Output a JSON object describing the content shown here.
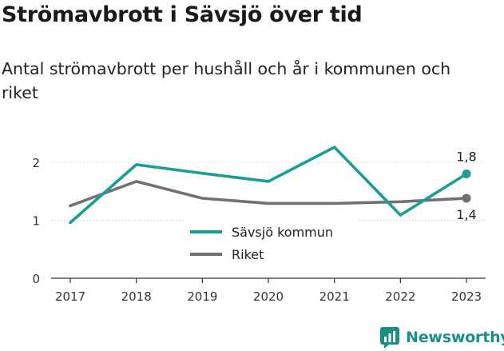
{
  "title": "Strömavbrott i Sävsjö över tid",
  "subtitle": "Antal strömavbrott per hushåll och år i kommunen och riket",
  "brand": {
    "name": "Newsworthy",
    "icon": "newsworthy-logo-icon",
    "color": "#1d8f87"
  },
  "chart_data": {
    "type": "line",
    "x": [
      "2017",
      "2018",
      "2019",
      "2020",
      "2021",
      "2022",
      "2023"
    ],
    "ylim": [
      0,
      2.5
    ],
    "yticks": [
      "0",
      "1",
      "2"
    ],
    "grid": true,
    "legend_position": "center",
    "series": [
      {
        "name": "Sävsjö kommun",
        "color": "#1a9e92",
        "values": [
          0.96,
          1.96,
          1.81,
          1.67,
          2.26,
          1.09,
          1.8
        ],
        "end_label": "1,8"
      },
      {
        "name": "Riket",
        "color": "#717075",
        "values": [
          1.25,
          1.67,
          1.38,
          1.29,
          1.29,
          1.32,
          1.38
        ],
        "end_label": "1,4"
      }
    ]
  }
}
